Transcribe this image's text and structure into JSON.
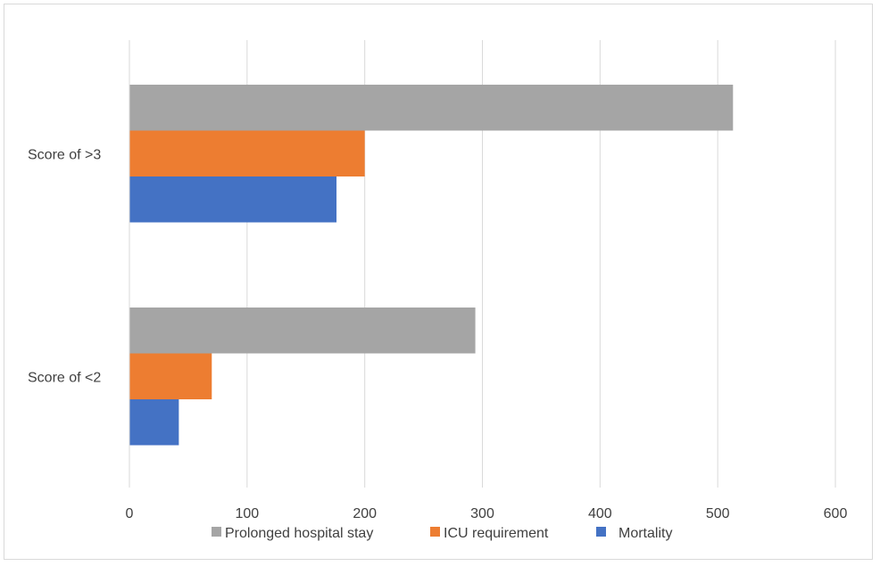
{
  "chart_data": {
    "type": "bar",
    "orientation": "horizontal",
    "categories": [
      "Score of >3",
      "Score of <2"
    ],
    "series": [
      {
        "name": "Prolonged hospital stay",
        "color": "#a5a5a5",
        "values": [
          513,
          294
        ]
      },
      {
        "name": "ICU requirement",
        "color": "#ed7d31",
        "values": [
          200,
          70
        ]
      },
      {
        "name": "Mortality",
        "color": "#4472c4",
        "values": [
          176,
          42
        ]
      }
    ],
    "xticks": [
      "0",
      "100",
      "200",
      "300",
      "400",
      "500",
      "600"
    ],
    "xlim": [
      0,
      600
    ],
    "grid": "vertical",
    "legend": "bottom",
    "title": "",
    "xlabel": "",
    "ylabel": ""
  }
}
